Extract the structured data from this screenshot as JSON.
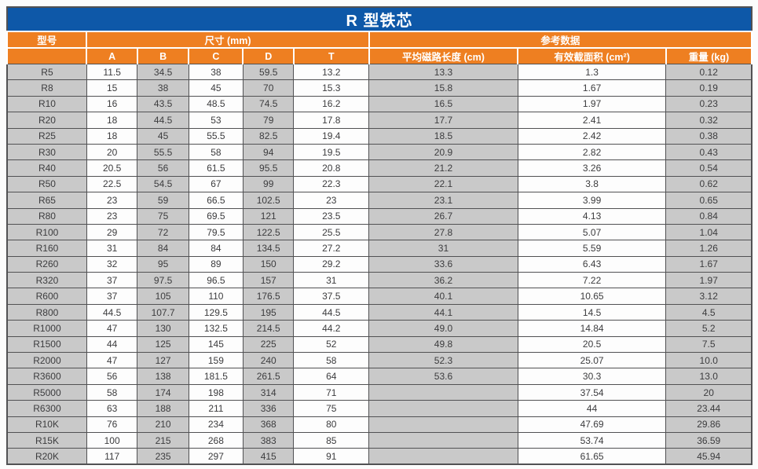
{
  "title": "R 型铁芯",
  "colors": {
    "title_bg": "#0e58a8",
    "header_bg": "#ee7f21",
    "row_gray": "#c9c9c9",
    "row_white": "#fdfdfd",
    "border": "#515153",
    "header_text": "#ffffff",
    "body_text": "#3c3c3e"
  },
  "table": {
    "header": {
      "model": "型号",
      "dims_group": "尺寸 (mm)",
      "ref_group": "参考数据",
      "sub_cols": [
        "",
        "A",
        "B",
        "C",
        "D",
        "T",
        "平均磁路长度 (cm)",
        "有效截面积 (cm²)",
        "重量 (kg)"
      ]
    },
    "column_shading": [
      "gray",
      "white",
      "gray",
      "white",
      "gray",
      "white",
      "gray",
      "white",
      "gray"
    ],
    "column_widths_pct": [
      10.7,
      6.8,
      6.9,
      7.3,
      6.8,
      10.1,
      20.0,
      19.9,
      11.5
    ],
    "rows": [
      [
        "R5",
        "11.5",
        "34.5",
        "38",
        "59.5",
        "13.2",
        "13.3",
        "1.3",
        "0.12"
      ],
      [
        "R8",
        "15",
        "38",
        "45",
        "70",
        "15.3",
        "15.8",
        "1.67",
        "0.19"
      ],
      [
        "R10",
        "16",
        "43.5",
        "48.5",
        "74.5",
        "16.2",
        "16.5",
        "1.97",
        "0.23"
      ],
      [
        "R20",
        "18",
        "44.5",
        "53",
        "79",
        "17.8",
        "17.7",
        "2.41",
        "0.32"
      ],
      [
        "R25",
        "18",
        "45",
        "55.5",
        "82.5",
        "19.4",
        "18.5",
        "2.42",
        "0.38"
      ],
      [
        "R30",
        "20",
        "55.5",
        "58",
        "94",
        "19.5",
        "20.9",
        "2.82",
        "0.43"
      ],
      [
        "R40",
        "20.5",
        "56",
        "61.5",
        "95.5",
        "20.8",
        "21.2",
        "3.26",
        "0.54"
      ],
      [
        "R50",
        "22.5",
        "54.5",
        "67",
        "99",
        "22.3",
        "22.1",
        "3.8",
        "0.62"
      ],
      [
        "R65",
        "23",
        "59",
        "66.5",
        "102.5",
        "23",
        "23.1",
        "3.99",
        "0.65"
      ],
      [
        "R80",
        "23",
        "75",
        "69.5",
        "121",
        "23.5",
        "26.7",
        "4.13",
        "0.84"
      ],
      [
        "R100",
        "29",
        "72",
        "79.5",
        "122.5",
        "25.5",
        "27.8",
        "5.07",
        "1.04"
      ],
      [
        "R160",
        "31",
        "84",
        "84",
        "134.5",
        "27.2",
        "31",
        "5.59",
        "1.26"
      ],
      [
        "R260",
        "32",
        "95",
        "89",
        "150",
        "29.2",
        "33.6",
        "6.43",
        "1.67"
      ],
      [
        "R320",
        "37",
        "97.5",
        "96.5",
        "157",
        "31",
        "36.2",
        "7.22",
        "1.97"
      ],
      [
        "R600",
        "37",
        "105",
        "110",
        "176.5",
        "37.5",
        "40.1",
        "10.65",
        "3.12"
      ],
      [
        "R800",
        "44.5",
        "107.7",
        "129.5",
        "195",
        "44.5",
        "44.1",
        "14.5",
        "4.5"
      ],
      [
        "R1000",
        "47",
        "130",
        "132.5",
        "214.5",
        "44.2",
        "49.0",
        "14.84",
        "5.2"
      ],
      [
        "R1500",
        "44",
        "125",
        "145",
        "225",
        "52",
        "49.8",
        "20.5",
        "7.5"
      ],
      [
        "R2000",
        "47",
        "127",
        "159",
        "240",
        "58",
        "52.3",
        "25.07",
        "10.0"
      ],
      [
        "R3600",
        "56",
        "138",
        "181.5",
        "261.5",
        "64",
        "53.6",
        "30.3",
        "13.0"
      ],
      [
        "R5000",
        "58",
        "174",
        "198",
        "314",
        "71",
        "",
        "37.54",
        "20"
      ],
      [
        "R6300",
        "63",
        "188",
        "211",
        "336",
        "75",
        "",
        "44",
        "23.44"
      ],
      [
        "R10K",
        "76",
        "210",
        "234",
        "368",
        "80",
        "",
        "47.69",
        "29.86"
      ],
      [
        "R15K",
        "100",
        "215",
        "268",
        "383",
        "85",
        "",
        "53.74",
        "36.59"
      ],
      [
        "R20K",
        "117",
        "235",
        "297",
        "415",
        "91",
        "",
        "61.65",
        "45.94"
      ]
    ]
  }
}
